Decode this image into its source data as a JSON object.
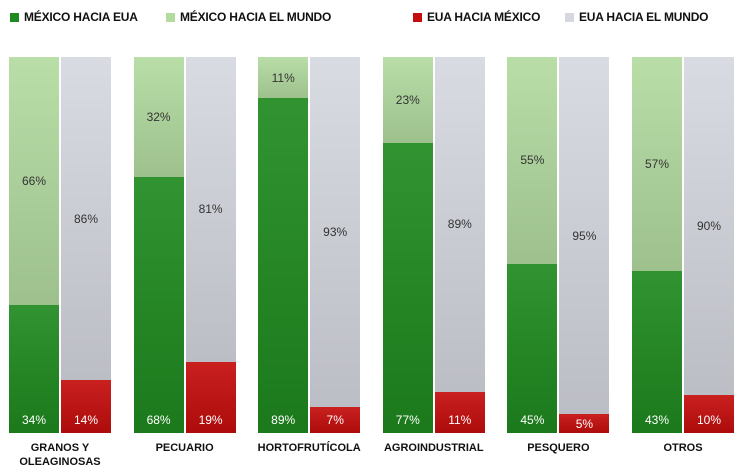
{
  "chart_data": {
    "type": "paired_stacked_bar",
    "categories": [
      "GRANOS Y OLEAGINOSAS",
      "PECUARIO",
      "HORTOFRUTÍCOLA",
      "AGROINDUSTRIAL",
      "PESQUERO",
      "OTROS"
    ],
    "ylim": [
      0,
      100
    ],
    "series": [
      {
        "name": "MÉXICO HACIA EUA",
        "color": "#1f8a1f",
        "stack": 0,
        "values": [
          34,
          68,
          89,
          77,
          45,
          43
        ],
        "value_labels": [
          "34%",
          "68%",
          "89%",
          "77%",
          "45%",
          "43%"
        ]
      },
      {
        "name": "MÉXICO HACIA EL MUNDO",
        "color": "#b3dba0",
        "stack": 0,
        "values": [
          66,
          32,
          11,
          23,
          55,
          57
        ],
        "value_labels": [
          "66%",
          "32%",
          "11%",
          "23%",
          "55%",
          "57%"
        ]
      },
      {
        "name": "EUA HACIA MÉXICO",
        "color": "#c50d0d",
        "stack": 1,
        "values": [
          14,
          19,
          7,
          11,
          5,
          10
        ],
        "value_labels": [
          "14%",
          "19%",
          "7%",
          "11%",
          "5%",
          "10%"
        ]
      },
      {
        "name": "EUA HACIA EL MUNDO",
        "color": "#d6d8e0",
        "stack": 1,
        "values": [
          86,
          81,
          93,
          89,
          95,
          90
        ],
        "value_labels": [
          "86%",
          "81%",
          "93%",
          "89%",
          "95%",
          "90%"
        ]
      }
    ]
  }
}
